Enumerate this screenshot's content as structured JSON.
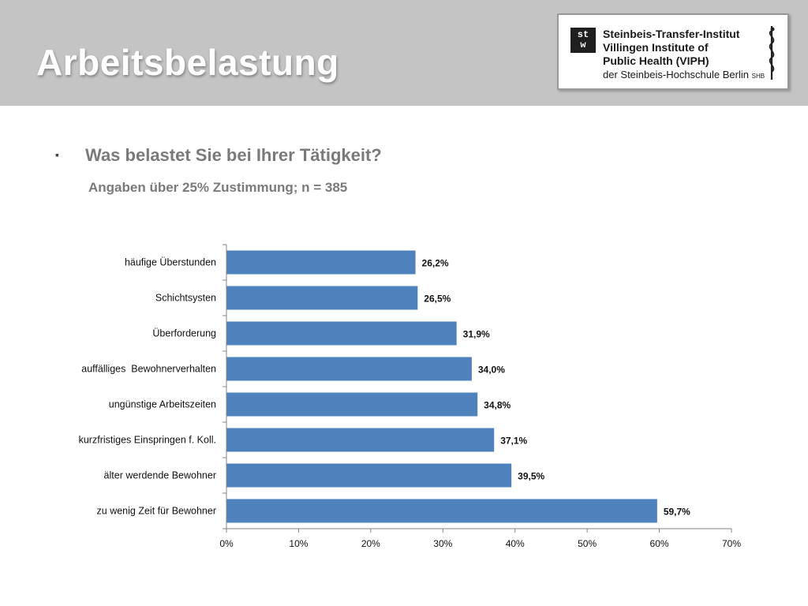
{
  "header": {
    "title": "Arbeitsbelastung",
    "logo": {
      "mark_top": "st",
      "mark_bottom": "w",
      "line1": "Steinbeis-Transfer-Institut",
      "line2": "Villingen Institute of",
      "line3": "Public Health (VIPH)",
      "line4": "der Steinbeis-Hochschule Berlin",
      "line4_suffix": "SHB"
    }
  },
  "content": {
    "bullet": "▪",
    "question": "Was belastet Sie bei Ihrer Tätigkeit?",
    "subtitle": "Angaben über 25% Zustimmung; n = 385"
  },
  "colors": {
    "bar": "#4f81bd",
    "header_bg": "#c4c4c4",
    "axis": "#868686"
  },
  "chart_data": {
    "type": "bar",
    "orientation": "horizontal",
    "categories": [
      "häufige Überstunden",
      "Schichtsysten",
      "Überforderung",
      "auffälliges  Bewohnerverhalten",
      "ungünstige Arbeitszeiten",
      "kurzfristiges Einspringen f. Koll.",
      "älter werdende Bewohner",
      "zu wenig Zeit für Bewohner"
    ],
    "values": [
      26.2,
      26.5,
      31.9,
      34.0,
      34.8,
      37.1,
      39.5,
      59.7
    ],
    "value_labels": [
      "26,2%",
      "26,5%",
      "31,9%",
      "34,0%",
      "34,8%",
      "37,1%",
      "39,5%",
      "59,7%"
    ],
    "xlim": [
      0,
      70
    ],
    "xticks": [
      0,
      10,
      20,
      30,
      40,
      50,
      60,
      70
    ],
    "xtick_labels": [
      "0%",
      "10%",
      "20%",
      "30%",
      "40%",
      "50%",
      "60%",
      "70%"
    ],
    "grid": false,
    "legend": "none"
  }
}
